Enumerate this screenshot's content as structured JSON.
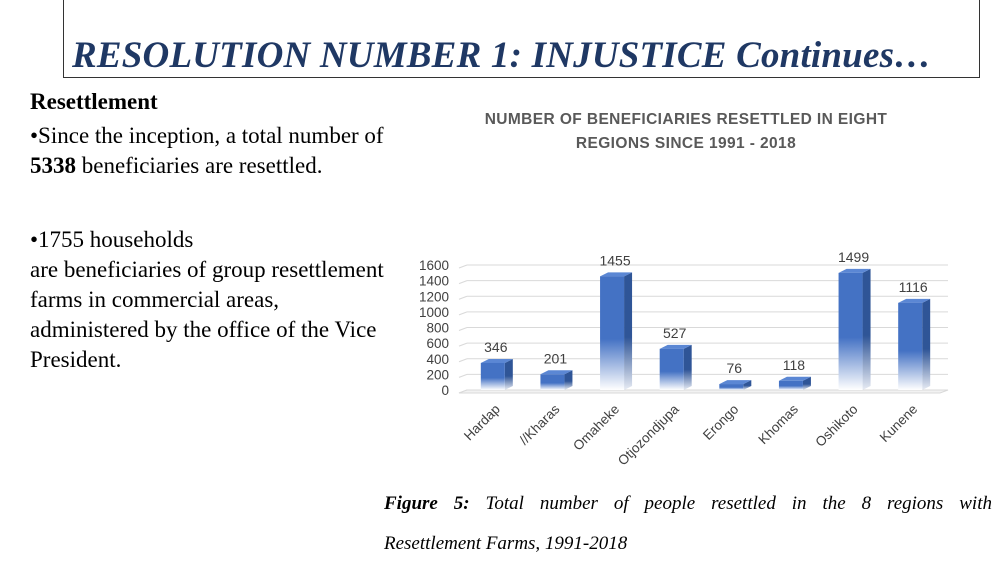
{
  "slide": {
    "title": "RESOLUTION NUMBER 1: INJUSTICE Continues…",
    "heading": "Resettlement",
    "para1_part1": "•Since the inception, a total number of ",
    "para1_bold": "5338",
    "para1_part2": " beneficiaries are resettled.",
    "para2_line1": "•1755 households",
    "para2_line2": "are beneficiaries of group resettlement farms in commercial areas, administered by the office of the Vice President."
  },
  "caption": {
    "label": "Figure 5:",
    "line1_rest": " Total number of people resettled in the 8 regions with",
    "line2": "Resettlement Farms, 1991-2018"
  },
  "chart_data": {
    "type": "bar",
    "title_line1": "NUMBER OF BENEFICIARIES RESETTLED IN EIGHT",
    "title_line2": "REGIONS SINCE 1991 - 2018",
    "categories": [
      "Hardap",
      "//Kharas",
      "Omaheke",
      "Otjozondjupa",
      "Erongo",
      "Khomas",
      "Oshikoto",
      "Kunene"
    ],
    "values": [
      346,
      201,
      1455,
      527,
      76,
      118,
      1499,
      1116
    ],
    "yticks": [
      0,
      200,
      400,
      600,
      800,
      1000,
      1200,
      1400,
      1600
    ],
    "ylim": [
      0,
      1600
    ],
    "grid": true,
    "bar_color": "#4472c4",
    "bar_side_color": "#2f5597",
    "bar_top_color": "#5b87d4"
  }
}
